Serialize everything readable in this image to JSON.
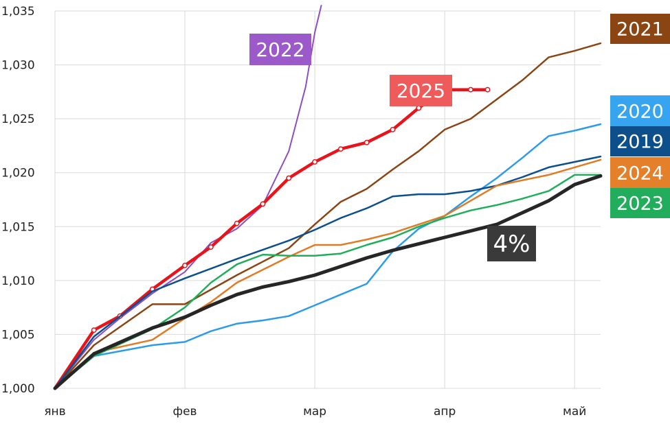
{
  "chart_data": {
    "type": "line",
    "title": "",
    "xlabel": "",
    "ylabel": "",
    "x_ticks": [
      {
        "label": "янв",
        "x": 0
      },
      {
        "label": "фев",
        "x": 1
      },
      {
        "label": "мар",
        "x": 2
      },
      {
        "label": "апр",
        "x": 3
      },
      {
        "label": "май",
        "x": 4
      }
    ],
    "xlim": [
      0,
      4.2
    ],
    "ylim": [
      1.0,
      1.035
    ],
    "y_ticks": [
      "1,000",
      "1,005",
      "1,010",
      "1,015",
      "1,020",
      "1,025",
      "1,030",
      "1,035"
    ],
    "grid": true,
    "series": [
      {
        "name": "2022",
        "color": "#8e4dc2",
        "width": 2,
        "markers": false,
        "x": [
          0,
          0.3,
          0.5,
          0.75,
          1.0,
          1.2,
          1.4,
          1.6,
          1.8,
          1.93,
          2.0,
          2.05
        ],
        "y": [
          1.0,
          1.0045,
          1.0065,
          1.0088,
          1.0108,
          1.0135,
          1.0148,
          1.017,
          1.022,
          1.028,
          1.033,
          1.0355
        ]
      },
      {
        "name": "2025",
        "color": "#e8141b",
        "width": 4.5,
        "markers": true,
        "x": [
          0,
          0.3,
          0.5,
          0.75,
          1.0,
          1.2,
          1.4,
          1.6,
          1.8,
          2.0,
          2.2,
          2.4,
          2.6,
          2.8,
          3.0,
          3.2,
          3.33
        ],
        "y": [
          1.0,
          1.0054,
          1.0067,
          1.0092,
          1.0114,
          1.0131,
          1.0153,
          1.0171,
          1.0195,
          1.021,
          1.0222,
          1.0228,
          1.024,
          1.026,
          1.0277,
          1.0277,
          1.0277
        ]
      },
      {
        "name": "2021",
        "color": "#8b4513",
        "width": 2.5,
        "markers": false,
        "x": [
          0,
          0.3,
          0.75,
          1.0,
          1.4,
          1.8,
          2.0,
          2.2,
          2.4,
          2.6,
          2.8,
          3.0,
          3.2,
          3.4,
          3.6,
          3.8,
          4.0,
          4.2
        ],
        "y": [
          1.0,
          1.004,
          1.0078,
          1.0078,
          1.0105,
          1.013,
          1.0152,
          1.0173,
          1.0185,
          1.0203,
          1.022,
          1.024,
          1.025,
          1.0268,
          1.0286,
          1.0307,
          1.0313,
          1.032
        ]
      },
      {
        "name": "2020",
        "color": "#2b9bea",
        "width": 2.5,
        "markers": false,
        "x": [
          0,
          0.3,
          0.75,
          1.0,
          1.2,
          1.4,
          1.6,
          1.8,
          2.0,
          2.2,
          2.4,
          2.6,
          2.8,
          3.0,
          3.2,
          3.4,
          3.6,
          3.8,
          4.0,
          4.2
        ],
        "y": [
          1.0,
          1.003,
          1.004,
          1.0043,
          1.0053,
          1.006,
          1.0063,
          1.0067,
          1.0077,
          1.0087,
          1.0097,
          1.0127,
          1.0148,
          1.016,
          1.0178,
          1.0195,
          1.0214,
          1.0234,
          1.0239,
          1.0245
        ]
      },
      {
        "name": "2019",
        "color": "#0b4f8c",
        "width": 2.5,
        "markers": false,
        "x": [
          0,
          0.3,
          0.75,
          1.0,
          1.4,
          1.8,
          2.0,
          2.2,
          2.4,
          2.6,
          2.8,
          3.0,
          3.2,
          3.4,
          3.6,
          3.8,
          4.0,
          4.2
        ],
        "y": [
          1.0,
          1.0048,
          1.009,
          1.0102,
          1.012,
          1.0137,
          1.0147,
          1.0158,
          1.0167,
          1.0178,
          1.018,
          1.018,
          1.0183,
          1.0188,
          1.0196,
          1.0205,
          1.021,
          1.0215
        ]
      },
      {
        "name": "2024",
        "color": "#e07b24",
        "width": 2.5,
        "markers": false,
        "x": [
          0,
          0.3,
          0.75,
          1.0,
          1.2,
          1.4,
          1.6,
          1.8,
          2.0,
          2.2,
          2.4,
          2.6,
          2.8,
          3.0,
          3.2,
          3.4,
          3.6,
          3.8,
          4.0,
          4.2
        ],
        "y": [
          1.0,
          1.0033,
          1.0045,
          1.0065,
          1.008,
          1.0098,
          1.011,
          1.0122,
          1.0133,
          1.0133,
          1.0138,
          1.0144,
          1.0152,
          1.016,
          1.0174,
          1.0188,
          1.0193,
          1.0198,
          1.0205,
          1.0212
        ]
      },
      {
        "name": "2023",
        "color": "#1fae5a",
        "width": 2.5,
        "markers": false,
        "x": [
          0,
          0.3,
          0.75,
          1.0,
          1.2,
          1.4,
          1.6,
          1.8,
          2.0,
          2.2,
          2.4,
          2.6,
          2.8,
          3.0,
          3.2,
          3.4,
          3.6,
          3.8,
          4.0,
          4.2
        ],
        "y": [
          1.0,
          1.003,
          1.0055,
          1.0075,
          1.0098,
          1.0115,
          1.0124,
          1.0123,
          1.0123,
          1.0125,
          1.0133,
          1.014,
          1.015,
          1.0158,
          1.0165,
          1.017,
          1.0176,
          1.0183,
          1.0198,
          1.0198
        ]
      },
      {
        "name": "4%",
        "color": "#262626",
        "width": 5,
        "markers": false,
        "x": [
          0,
          0.3,
          0.75,
          1.0,
          1.2,
          1.4,
          1.6,
          1.8,
          2.0,
          2.2,
          2.4,
          2.6,
          2.8,
          3.0,
          3.2,
          3.4,
          3.6,
          3.8,
          4.0,
          4.2
        ],
        "y": [
          1.0,
          1.0032,
          1.0056,
          1.0066,
          1.0077,
          1.0087,
          1.0094,
          1.0099,
          1.0105,
          1.0113,
          1.0121,
          1.0128,
          1.0134,
          1.014,
          1.0146,
          1.0152,
          1.0163,
          1.0174,
          1.0189,
          1.0197
        ]
      }
    ],
    "labels": [
      {
        "text": "2022",
        "color": "#9b59c9",
        "series": "2022"
      },
      {
        "text": "2025",
        "color": "#ef5b5b",
        "series": "2025"
      },
      {
        "text": "2021",
        "color": "#8b4513",
        "series": "2021"
      },
      {
        "text": "2020",
        "color": "#36a4ee",
        "series": "2020"
      },
      {
        "text": "2019",
        "color": "#0d4f8b",
        "series": "2019"
      },
      {
        "text": "2024",
        "color": "#e4802a",
        "series": "2024"
      },
      {
        "text": "2023",
        "color": "#22ad5c",
        "series": "2023"
      },
      {
        "text": "4%",
        "color": "#3a3a3a",
        "series": "4%"
      }
    ]
  }
}
